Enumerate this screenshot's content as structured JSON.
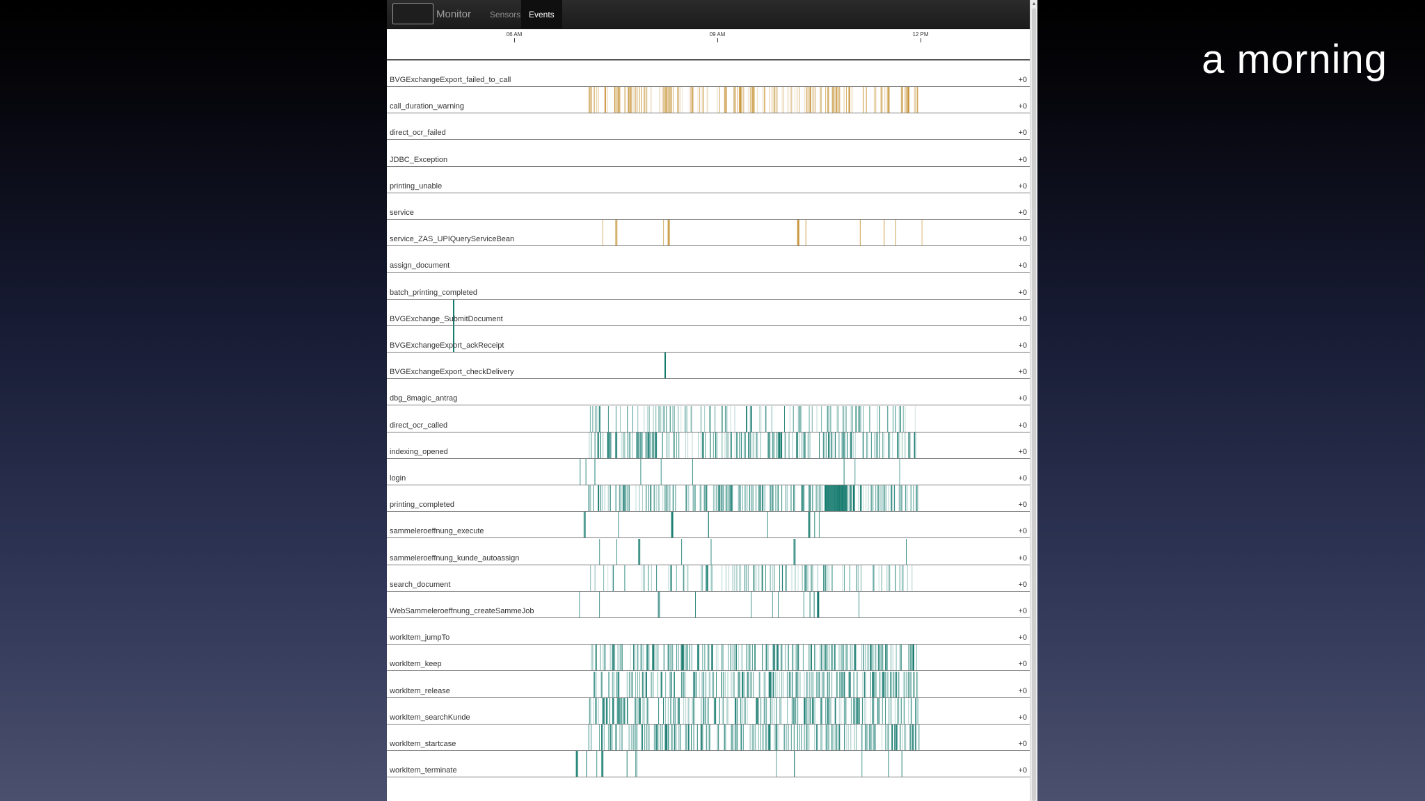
{
  "slide": {
    "title": "a morning"
  },
  "nav": {
    "brand": "Monitor",
    "tabs": [
      "Sensors",
      "Events"
    ],
    "active_tab": "Events"
  },
  "axis": {
    "ticks": [
      "06 AM",
      "09 AM",
      "12 PM"
    ]
  },
  "colors": {
    "warning": "#c8963c",
    "event": "#157a6e",
    "text": "#333333"
  },
  "events": [
    {
      "name": "BVGExchangeExport_failed_to_call",
      "value": "+0",
      "color": "warning",
      "activity": "none"
    },
    {
      "name": "call_duration_warning",
      "value": "+0",
      "color": "warning",
      "activity": "dense"
    },
    {
      "name": "direct_ocr_failed",
      "value": "+0",
      "color": "warning",
      "activity": "none"
    },
    {
      "name": "JDBC_Exception",
      "value": "+0",
      "color": "warning",
      "activity": "none"
    },
    {
      "name": "printing_unable",
      "value": "+0",
      "color": "warning",
      "activity": "none"
    },
    {
      "name": "service",
      "value": "+0",
      "color": "warning",
      "activity": "none"
    },
    {
      "name": "service_ZAS_UPIQueryServiceBean",
      "value": "+0",
      "color": "warning",
      "activity": "sparse"
    },
    {
      "name": "assign_document",
      "value": "+0",
      "color": "event",
      "activity": "none"
    },
    {
      "name": "batch_printing_completed",
      "value": "+0",
      "color": "event",
      "activity": "none"
    },
    {
      "name": "BVGExchange_SubmitDocument",
      "value": "+0",
      "color": "event",
      "activity": "single"
    },
    {
      "name": "BVGExchangeExport_ackReceipt",
      "value": "+0",
      "color": "event",
      "activity": "single"
    },
    {
      "name": "BVGExchangeExport_checkDelivery",
      "value": "+0",
      "color": "event",
      "activity": "single"
    },
    {
      "name": "dbg_8magic_antrag",
      "value": "+0",
      "color": "event",
      "activity": "none"
    },
    {
      "name": "direct_ocr_called",
      "value": "+0",
      "color": "event",
      "activity": "medium"
    },
    {
      "name": "indexing_opened",
      "value": "+0",
      "color": "event",
      "activity": "dense"
    },
    {
      "name": "login",
      "value": "+0",
      "color": "event",
      "activity": "sparse"
    },
    {
      "name": "printing_completed",
      "value": "+0",
      "color": "event",
      "activity": "dense"
    },
    {
      "name": "sammeleroeffnung_execute",
      "value": "+0",
      "color": "event",
      "activity": "sparse"
    },
    {
      "name": "sammeleroeffnung_kunde_autoassign",
      "value": "+0",
      "color": "event",
      "activity": "sparse"
    },
    {
      "name": "search_document",
      "value": "+0",
      "color": "event",
      "activity": "medium"
    },
    {
      "name": "WebSammeleroeffnung_createSammeJob",
      "value": "+0",
      "color": "event",
      "activity": "sparse"
    },
    {
      "name": "workItem_jumpTo",
      "value": "+0",
      "color": "event",
      "activity": "none"
    },
    {
      "name": "workItem_keep",
      "value": "+0",
      "color": "event",
      "activity": "dense"
    },
    {
      "name": "workItem_release",
      "value": "+0",
      "color": "event",
      "activity": "dense"
    },
    {
      "name": "workItem_searchKunde",
      "value": "+0",
      "color": "event",
      "activity": "dense"
    },
    {
      "name": "workItem_startcase",
      "value": "+0",
      "color": "event",
      "activity": "dense"
    },
    {
      "name": "workItem_terminate",
      "value": "+0",
      "color": "event",
      "activity": "sparse"
    }
  ]
}
